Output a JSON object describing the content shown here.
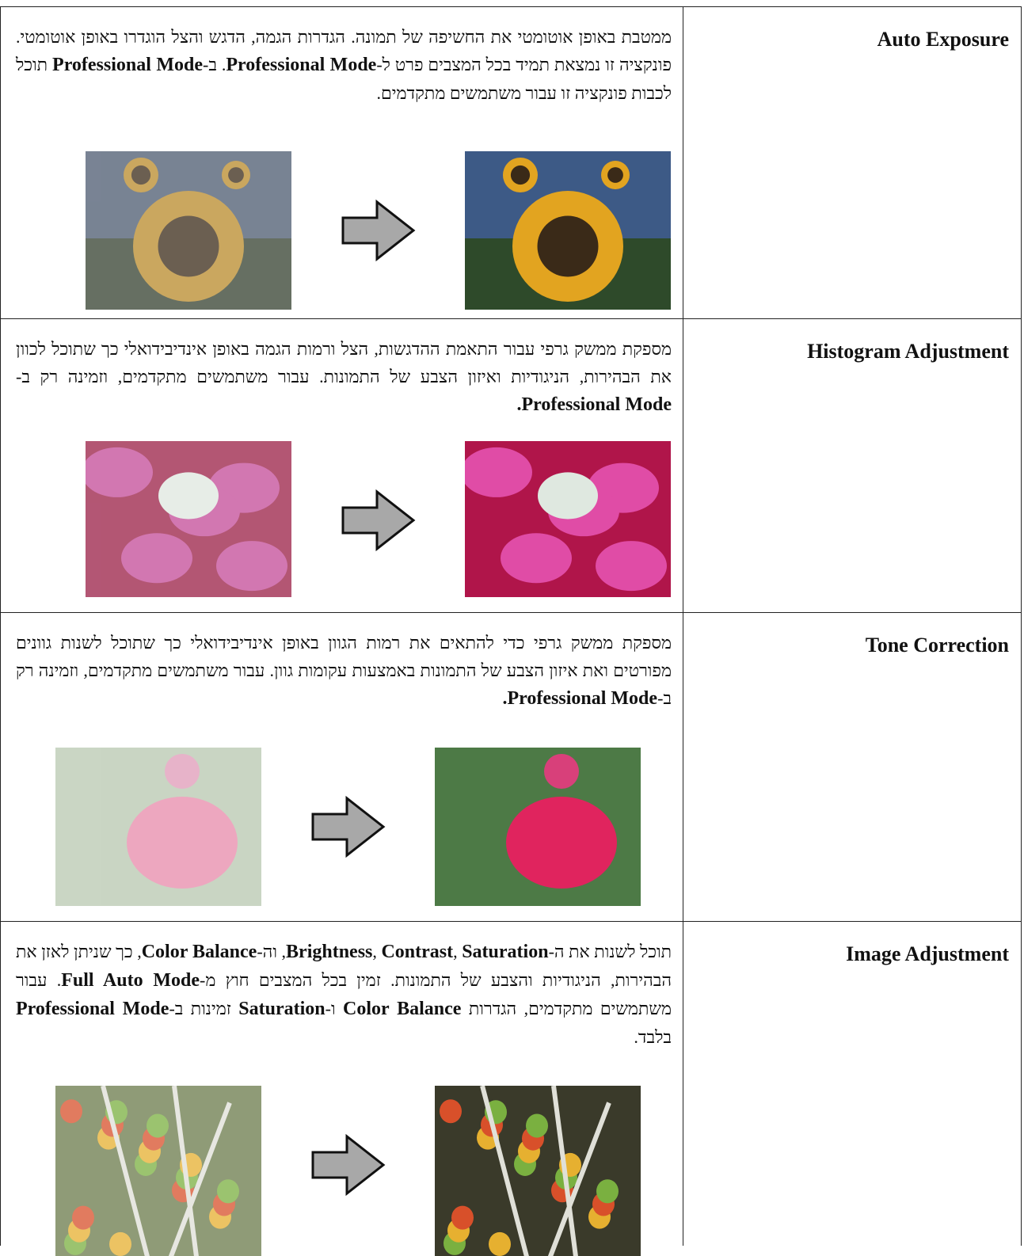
{
  "table": {
    "rows": [
      {
        "title": "Auto Exposure",
        "description": [
          {
            "text": "ממטבת באופן אוטומטי את החשיפה של תמונה. הגדרות הגמה, הדגש והצל הוגדרו באופן אוטומטי. פונקציה זו נמצאת תמיד בכל המצבים פרט ל-",
            "bold": false
          },
          {
            "text": "Professional Mode",
            "bold": true
          },
          {
            "text": ". ב-",
            "bold": false
          },
          {
            "text": "Professional Mode",
            "bold": true
          },
          {
            "text": " תוכל לכבות פונקציה זו עבור משתמשים מתקדמים.",
            "bold": false
          }
        ]
      },
      {
        "title": "Histogram Adjustment",
        "description": [
          {
            "text": "מספקת ממשק גרפי עבור התאמת ההדגשות, הצל ורמות הגמה באופן אינדיבידואלי כך שתוכל לכוון את הבהירות, הניגודיות ואיזון הצבע של התמונות. עבור משתמשים מתקדמים, וזמינה רק ב-",
            "bold": false
          },
          {
            "text": "Professional Mode",
            "bold": true
          },
          {
            "text": ".",
            "bold": true
          }
        ]
      },
      {
        "title": "Tone Correction",
        "description": [
          {
            "text": "מספקת ממשק גרפי כדי להתאים את רמות הגוון באופן אינדיבידואלי כך שתוכל לשנות גוונים מפורטים ואת איזון הצבע של התמונות באמצעות עקומות גוון. עבור משתמשים מתקדמים, וזמינה רק ב-",
            "bold": false
          },
          {
            "text": "Professional Mode",
            "bold": true
          },
          {
            "text": ".",
            "bold": true
          }
        ]
      },
      {
        "title": "Image Adjustment",
        "description": [
          {
            "text": "תוכל לשנות את ה-",
            "bold": false
          },
          {
            "text": "Brightness",
            "bold": true
          },
          {
            "text": ", ",
            "bold": false
          },
          {
            "text": "Contrast",
            "bold": true
          },
          {
            "text": ", ",
            "bold": false
          },
          {
            "text": "Saturation",
            "bold": true
          },
          {
            "text": ", וה-",
            "bold": false
          },
          {
            "text": "Color Balance",
            "bold": true
          },
          {
            "text": ", כך שניתן לאזן את הבהירות, הניגודיות והצבע של התמונות. זמין בכל המצבים חוץ מ-",
            "bold": false
          },
          {
            "text": "Full Auto Mode",
            "bold": true
          },
          {
            "text": ". עבור משתמשים מתקדמים, הגדרות ",
            "bold": false
          },
          {
            "text": "Color Balance",
            "bold": true
          },
          {
            "text": " ו-",
            "bold": false
          },
          {
            "text": "Saturation",
            "bold": true
          },
          {
            "text": " זמינות ב-",
            "bold": false
          },
          {
            "text": "Professional Mode",
            "bold": true
          },
          {
            "text": " בלבד.",
            "bold": false
          }
        ]
      }
    ]
  }
}
